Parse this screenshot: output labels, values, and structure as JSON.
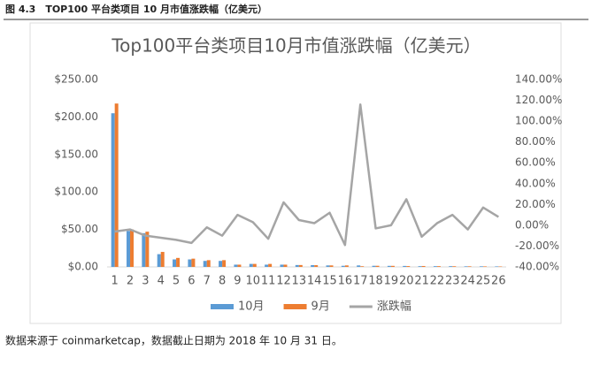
{
  "caption": "图 4.3　TOP100 平台类项目 10 月市值涨跌幅（亿美元）",
  "note": "数据来源于 coinmarketcap，数据截止日期为 2018 年 10 月 31 日。",
  "chart_data": {
    "type": "bar",
    "title": "Top100平台类项目10月市值涨跌幅（亿美元）",
    "categories": [
      "1",
      "2",
      "3",
      "4",
      "5",
      "6",
      "7",
      "8",
      "9",
      "10",
      "11",
      "12",
      "13",
      "14",
      "15",
      "16",
      "17",
      "18",
      "19",
      "20",
      "21",
      "22",
      "23",
      "24",
      "25",
      "26"
    ],
    "series": [
      {
        "name": "10月",
        "type": "bar",
        "axis": "y",
        "color": "#5b9bd5",
        "values": [
          205,
          48,
          45,
          17,
          10,
          10,
          8,
          8,
          3,
          4,
          3,
          3,
          2.5,
          2.4,
          2,
          1.5,
          2,
          1.5,
          1.4,
          1.3,
          1,
          1,
          1,
          0.8,
          0.8,
          0.7
        ]
      },
      {
        "name": "9月",
        "type": "bar",
        "axis": "y",
        "color": "#ed7d31",
        "values": [
          218,
          50,
          47,
          20,
          12,
          11,
          9,
          9,
          3,
          4,
          4,
          3,
          2.5,
          2.3,
          2,
          2,
          0.9,
          1.5,
          1.4,
          1.1,
          1.2,
          1,
          0.9,
          0.8,
          0.7,
          0.6
        ]
      },
      {
        "name": "涨跌幅",
        "type": "line",
        "axis": "y2",
        "color": "#a5a5a5",
        "values": [
          -6,
          -4,
          -10,
          -12,
          -14,
          -17,
          -2,
          -10,
          10,
          3,
          -13,
          22,
          5,
          2,
          12,
          -19,
          116,
          -3,
          0,
          25,
          -11,
          2,
          10,
          -4,
          17,
          8
        ]
      }
    ],
    "ylim": [
      0,
      250
    ],
    "yticks": [
      {
        "value": 0,
        "label": "$0.00"
      },
      {
        "value": 50,
        "label": "$50.00"
      },
      {
        "value": 100,
        "label": "$100.00"
      },
      {
        "value": 150,
        "label": "$150.00"
      },
      {
        "value": 200,
        "label": "$200.00"
      },
      {
        "value": 250,
        "label": "$250.00"
      }
    ],
    "y2lim": [
      -40,
      140
    ],
    "y2ticks": [
      {
        "value": -40,
        "label": "-40.00%"
      },
      {
        "value": -20,
        "label": "-20.00%"
      },
      {
        "value": 0,
        "label": "0.00%"
      },
      {
        "value": 20,
        "label": "20.00%"
      },
      {
        "value": 40,
        "label": "40.00%"
      },
      {
        "value": 60,
        "label": "60.00%"
      },
      {
        "value": 80,
        "label": "80.00%"
      },
      {
        "value": 100,
        "label": "100.00%"
      },
      {
        "value": 120,
        "label": "120.00%"
      },
      {
        "value": 140,
        "label": "140.00%"
      }
    ],
    "grid": false,
    "legend": "bottom"
  }
}
